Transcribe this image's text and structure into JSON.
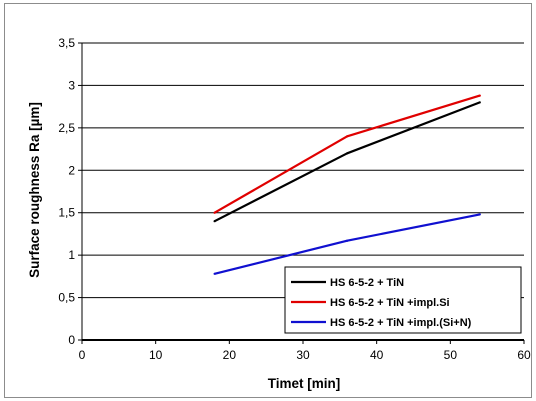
{
  "chart_data": {
    "type": "line",
    "xlabel": "Timet [min]",
    "ylabel": "Surface roughness Ra  [µm]",
    "xlim": [
      0,
      60
    ],
    "ylim": [
      0,
      3.5
    ],
    "x_ticks": [
      "0",
      "10",
      "20",
      "30",
      "40",
      "50",
      "60"
    ],
    "y_ticks": [
      "0",
      "0,5",
      "1",
      "1,5",
      "2",
      "2,5",
      "3",
      "3,5"
    ],
    "grid": "horizontal",
    "legend_position": "bottom-right",
    "series": [
      {
        "name": "HS 6-5-2 + TiN",
        "color": "#000000",
        "x": [
          18,
          36,
          54
        ],
        "y": [
          1.4,
          2.2,
          2.8
        ]
      },
      {
        "name": "HS 6-5-2 + TiN +impl.Si",
        "color": "#e00000",
        "x": [
          18,
          36,
          54
        ],
        "y": [
          1.5,
          2.4,
          2.88
        ]
      },
      {
        "name": "HS 6-5-2 + TiN +impl.(Si+N)",
        "color": "#1010d0",
        "x": [
          18,
          36,
          54
        ],
        "y": [
          0.78,
          1.17,
          1.48
        ]
      }
    ]
  }
}
